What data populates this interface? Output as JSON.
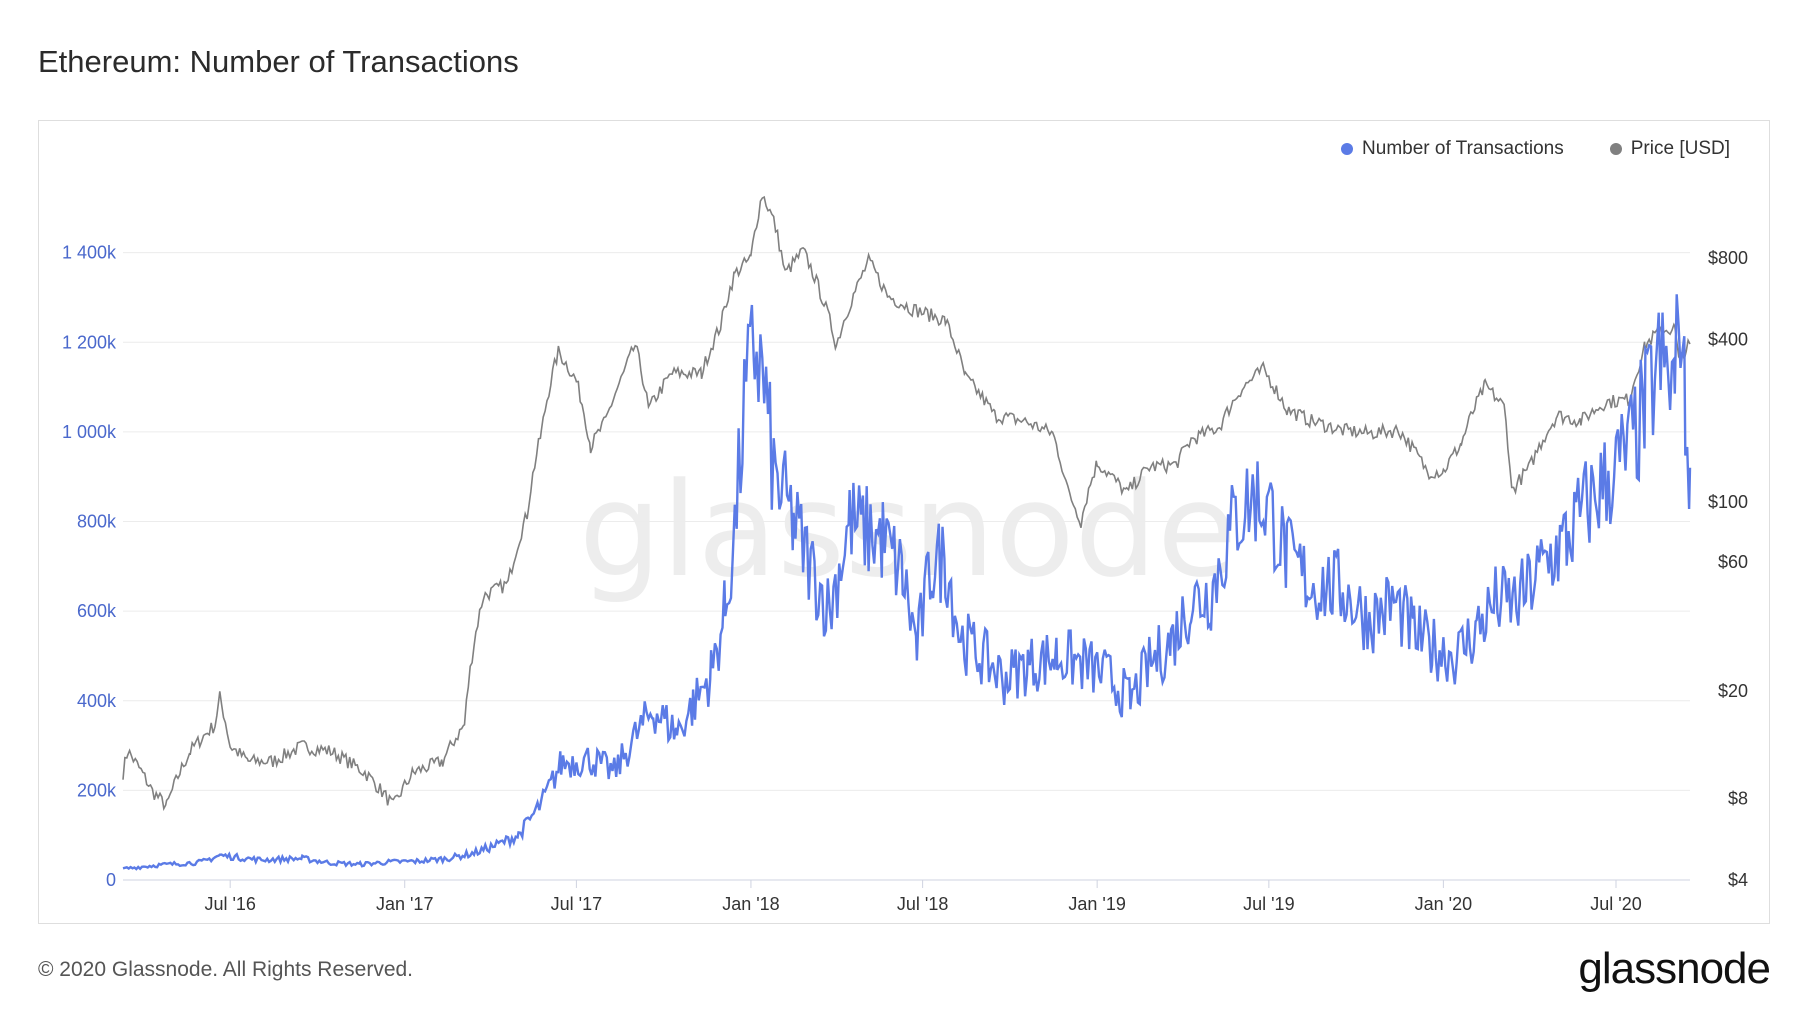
{
  "header": {
    "title": "Ethereum: Number of Transactions"
  },
  "footer": {
    "copyright": "© 2020 Glassnode. All Rights Reserved.",
    "brand": "glassnode"
  },
  "watermark": "glassnode",
  "colors": {
    "transactions": "#5b7be6",
    "price": "#808080",
    "left_axis": "#4a68cc"
  },
  "chart_data": {
    "type": "line",
    "title": "Ethereum: Number of Transactions",
    "legend": [
      {
        "name": "Number of Transactions",
        "color": "#5b7be6"
      },
      {
        "name": "Price [USD]",
        "color": "#808080"
      }
    ],
    "legend_position": "top-right",
    "grid": true,
    "x_ticks": [
      {
        "label": "Jul '16",
        "date": "2016-07-01"
      },
      {
        "label": "Jan '17",
        "date": "2017-01-01"
      },
      {
        "label": "Jul '17",
        "date": "2017-07-01"
      },
      {
        "label": "Jan '18",
        "date": "2018-01-01"
      },
      {
        "label": "Jul '18",
        "date": "2018-07-01"
      },
      {
        "label": "Jan '19",
        "date": "2019-01-01"
      },
      {
        "label": "Jul '19",
        "date": "2019-07-01"
      },
      {
        "label": "Jan '20",
        "date": "2020-01-01"
      },
      {
        "label": "Jul '20",
        "date": "2020-07-01"
      }
    ],
    "x_range": [
      "2016-03-10",
      "2020-09-17"
    ],
    "y_left": {
      "ticks": [
        0,
        200000,
        400000,
        600000,
        800000,
        1000000,
        1200000,
        1400000
      ],
      "tick_labels": [
        "0",
        "200k",
        "400k",
        "600k",
        "800k",
        "1 000k",
        "1 200k",
        "1 400k"
      ],
      "range": [
        0,
        1600000
      ]
    },
    "y_right": {
      "scale": "log",
      "ticks": [
        4,
        8,
        20,
        60,
        100,
        400,
        800
      ],
      "tick_labels": [
        "$4",
        "$8",
        "$20",
        "$60",
        "$100",
        "$400",
        "$800"
      ],
      "range": [
        4,
        1800
      ]
    },
    "series": [
      {
        "name": "Number of Transactions",
        "axis": "left",
        "points": [
          [
            "2016-03-10",
            25000
          ],
          [
            "2016-04-15",
            33000
          ],
          [
            "2016-06-01",
            40000
          ],
          [
            "2016-06-20",
            55000
          ],
          [
            "2016-08-01",
            45000
          ],
          [
            "2016-09-15",
            48000
          ],
          [
            "2016-10-15",
            38000
          ],
          [
            "2016-11-15",
            35000
          ],
          [
            "2016-12-15",
            40000
          ],
          [
            "2017-01-15",
            42000
          ],
          [
            "2017-02-15",
            48000
          ],
          [
            "2017-03-15",
            60000
          ],
          [
            "2017-04-10",
            80000
          ],
          [
            "2017-05-01",
            100000
          ],
          [
            "2017-05-25",
            170000
          ],
          [
            "2017-06-15",
            260000
          ],
          [
            "2017-07-15",
            270000
          ],
          [
            "2017-08-10",
            240000
          ],
          [
            "2017-09-01",
            320000
          ],
          [
            "2017-09-20",
            380000
          ],
          [
            "2017-10-15",
            330000
          ],
          [
            "2017-11-01",
            390000
          ],
          [
            "2017-11-20",
            460000
          ],
          [
            "2017-12-05",
            600000
          ],
          [
            "2017-12-15",
            780000
          ],
          [
            "2017-12-25",
            1050000
          ],
          [
            "2018-01-05",
            1200000
          ],
          [
            "2018-01-15",
            1100000
          ],
          [
            "2018-01-25",
            900000
          ],
          [
            "2018-02-15",
            800000
          ],
          [
            "2018-03-05",
            700000
          ],
          [
            "2018-03-25",
            600000
          ],
          [
            "2018-04-15",
            800000
          ],
          [
            "2018-05-01",
            780000
          ],
          [
            "2018-05-20",
            760000
          ],
          [
            "2018-06-10",
            680000
          ],
          [
            "2018-06-25",
            520000
          ],
          [
            "2018-07-10",
            700000
          ],
          [
            "2018-07-25",
            720000
          ],
          [
            "2018-08-10",
            540000
          ],
          [
            "2018-09-01",
            500000
          ],
          [
            "2018-09-25",
            450000
          ],
          [
            "2018-10-20",
            480000
          ],
          [
            "2018-11-20",
            500000
          ],
          [
            "2018-12-20",
            480000
          ],
          [
            "2019-01-15",
            450000
          ],
          [
            "2019-02-05",
            400000
          ],
          [
            "2019-02-25",
            480000
          ],
          [
            "2019-03-20",
            530000
          ],
          [
            "2019-04-10",
            620000
          ],
          [
            "2019-05-01",
            640000
          ],
          [
            "2019-05-25",
            800000
          ],
          [
            "2019-06-15",
            860000
          ],
          [
            "2019-07-01",
            830000
          ],
          [
            "2019-07-20",
            720000
          ],
          [
            "2019-08-15",
            660000
          ],
          [
            "2019-09-15",
            650000
          ],
          [
            "2019-10-15",
            580000
          ],
          [
            "2019-11-10",
            620000
          ],
          [
            "2019-12-01",
            550000
          ],
          [
            "2019-12-20",
            520000
          ],
          [
            "2020-01-15",
            500000
          ],
          [
            "2020-02-05",
            560000
          ],
          [
            "2020-02-25",
            620000
          ],
          [
            "2020-03-20",
            620000
          ],
          [
            "2020-04-15",
            700000
          ],
          [
            "2020-05-10",
            760000
          ],
          [
            "2020-06-01",
            840000
          ],
          [
            "2020-06-25",
            900000
          ],
          [
            "2020-07-15",
            960000
          ],
          [
            "2020-08-01",
            1050000
          ],
          [
            "2020-08-15",
            1150000
          ],
          [
            "2020-09-01",
            1100000
          ],
          [
            "2020-09-07",
            1300000
          ],
          [
            "2020-09-12",
            1020000
          ],
          [
            "2020-09-17",
            920000
          ]
        ]
      },
      {
        "name": "Price [USD]",
        "axis": "right",
        "points": [
          [
            "2016-03-10",
            10
          ],
          [
            "2016-03-15",
            12
          ],
          [
            "2016-04-10",
            8.5
          ],
          [
            "2016-04-25",
            7.5
          ],
          [
            "2016-05-20",
            12
          ],
          [
            "2016-06-15",
            15
          ],
          [
            "2016-06-20",
            19
          ],
          [
            "2016-07-01",
            12.5
          ],
          [
            "2016-07-20",
            11
          ],
          [
            "2016-08-15",
            11
          ],
          [
            "2016-09-15",
            12.5
          ],
          [
            "2016-10-15",
            12
          ],
          [
            "2016-11-20",
            10
          ],
          [
            "2016-12-20",
            7.5
          ],
          [
            "2017-01-10",
            10
          ],
          [
            "2017-02-10",
            11
          ],
          [
            "2017-03-05",
            15
          ],
          [
            "2017-03-25",
            45
          ],
          [
            "2017-04-20",
            50
          ],
          [
            "2017-05-10",
            90
          ],
          [
            "2017-05-25",
            180
          ],
          [
            "2017-06-12",
            360
          ],
          [
            "2017-07-01",
            280
          ],
          [
            "2017-07-16",
            160
          ],
          [
            "2017-08-01",
            200
          ],
          [
            "2017-08-20",
            300
          ],
          [
            "2017-09-01",
            380
          ],
          [
            "2017-09-15",
            220
          ],
          [
            "2017-10-10",
            300
          ],
          [
            "2017-11-10",
            300
          ],
          [
            "2017-11-30",
            450
          ],
          [
            "2017-12-15",
            700
          ],
          [
            "2018-01-01",
            800
          ],
          [
            "2018-01-13",
            1380
          ],
          [
            "2018-01-25",
            1100
          ],
          [
            "2018-02-06",
            700
          ],
          [
            "2018-02-25",
            850
          ],
          [
            "2018-03-15",
            600
          ],
          [
            "2018-04-01",
            380
          ],
          [
            "2018-04-25",
            650
          ],
          [
            "2018-05-05",
            780
          ],
          [
            "2018-05-25",
            580
          ],
          [
            "2018-06-20",
            520
          ],
          [
            "2018-07-25",
            470
          ],
          [
            "2018-08-15",
            290
          ],
          [
            "2018-09-15",
            210
          ],
          [
            "2018-10-15",
            200
          ],
          [
            "2018-11-15",
            180
          ],
          [
            "2018-12-01",
            110
          ],
          [
            "2018-12-15",
            85
          ],
          [
            "2019-01-01",
            140
          ],
          [
            "2019-02-01",
            108
          ],
          [
            "2019-02-25",
            135
          ],
          [
            "2019-03-25",
            138
          ],
          [
            "2019-04-10",
            170
          ],
          [
            "2019-05-10",
            190
          ],
          [
            "2019-06-01",
            260
          ],
          [
            "2019-06-25",
            310
          ],
          [
            "2019-07-20",
            220
          ],
          [
            "2019-08-15",
            200
          ],
          [
            "2019-09-15",
            185
          ],
          [
            "2019-10-15",
            180
          ],
          [
            "2019-11-15",
            185
          ],
          [
            "2019-12-15",
            130
          ],
          [
            "2020-01-01",
            130
          ],
          [
            "2020-01-20",
            165
          ],
          [
            "2020-02-14",
            270
          ],
          [
            "2020-03-05",
            225
          ],
          [
            "2020-03-13",
            110
          ],
          [
            "2020-04-01",
            135
          ],
          [
            "2020-04-30",
            210
          ],
          [
            "2020-05-25",
            200
          ],
          [
            "2020-06-20",
            235
          ],
          [
            "2020-07-15",
            240
          ],
          [
            "2020-08-01",
            380
          ],
          [
            "2020-08-15",
            430
          ],
          [
            "2020-09-01",
            440
          ],
          [
            "2020-09-05",
            335
          ],
          [
            "2020-09-17",
            385
          ]
        ]
      }
    ]
  }
}
